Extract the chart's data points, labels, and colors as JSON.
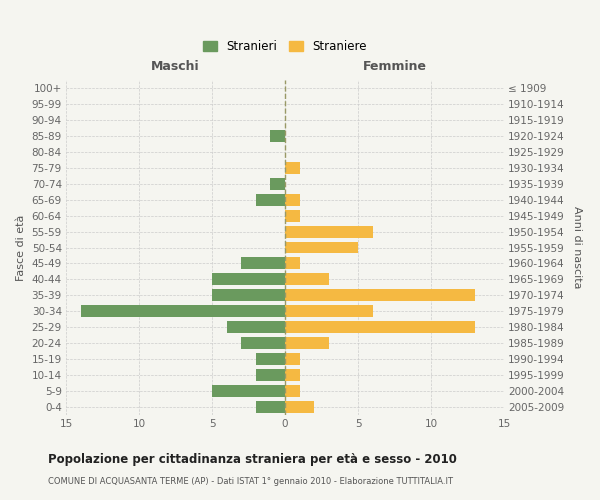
{
  "age_groups": [
    "0-4",
    "5-9",
    "10-14",
    "15-19",
    "20-24",
    "25-29",
    "30-34",
    "35-39",
    "40-44",
    "45-49",
    "50-54",
    "55-59",
    "60-64",
    "65-69",
    "70-74",
    "75-79",
    "80-84",
    "85-89",
    "90-94",
    "95-99",
    "100+"
  ],
  "birth_years": [
    "2005-2009",
    "2000-2004",
    "1995-1999",
    "1990-1994",
    "1985-1989",
    "1980-1984",
    "1975-1979",
    "1970-1974",
    "1965-1969",
    "1960-1964",
    "1955-1959",
    "1950-1954",
    "1945-1949",
    "1940-1944",
    "1935-1939",
    "1930-1934",
    "1925-1929",
    "1920-1924",
    "1915-1919",
    "1910-1914",
    "≤ 1909"
  ],
  "males": [
    2,
    5,
    2,
    2,
    3,
    4,
    14,
    5,
    5,
    3,
    0,
    0,
    0,
    2,
    1,
    0,
    0,
    1,
    0,
    0,
    0
  ],
  "females": [
    2,
    1,
    1,
    1,
    3,
    13,
    6,
    13,
    3,
    1,
    5,
    6,
    1,
    1,
    0,
    1,
    0,
    0,
    0,
    0,
    0
  ],
  "male_color": "#6a9a5e",
  "female_color": "#f5b942",
  "background_color": "#f5f5f0",
  "grid_color": "#cccccc",
  "center_line_color": "#999966",
  "title": "Popolazione per cittadinanza straniera per età e sesso - 2010",
  "subtitle": "COMUNE DI ACQUASANTA TERME (AP) - Dati ISTAT 1° gennaio 2010 - Elaborazione TUTTITALIA.IT",
  "xlabel_left": "Maschi",
  "xlabel_right": "Femmine",
  "ylabel_left": "Fasce di età",
  "ylabel_right": "Anni di nascita",
  "legend_males": "Stranieri",
  "legend_females": "Straniere",
  "xlim": 15,
  "bar_height": 0.75
}
